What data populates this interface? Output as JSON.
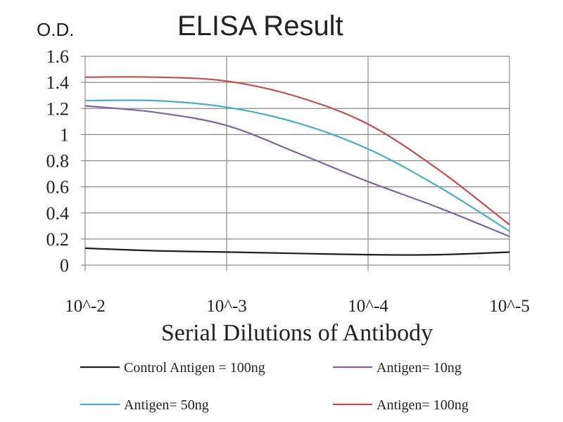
{
  "chart_data": {
    "type": "line",
    "title": "ELISA Result",
    "ylabel": "O.D.",
    "xlabel": "Serial Dilutions of Antibody",
    "x_categories": [
      "10^-2",
      "10^-3",
      "10^-4",
      "10^-5"
    ],
    "x_scale": "log (dilution factor, decreasing)",
    "ylim": [
      0,
      1.6
    ],
    "y_ticks": [
      "0",
      "0.2",
      "0.4",
      "0.6",
      "0.8",
      "1",
      "1.2",
      "1.4",
      "1.6"
    ],
    "grid": true,
    "legend_placement": "bottom",
    "series": [
      {
        "name": "Control Antigen = 100ng",
        "color": "#1f1f1f",
        "x": [
          0,
          0.5,
          1,
          1.5,
          2,
          2.5,
          3
        ],
        "y": [
          0.13,
          0.11,
          0.1,
          0.09,
          0.08,
          0.08,
          0.1
        ]
      },
      {
        "name": "Antigen= 10ng",
        "color": "#8064a2",
        "x": [
          0,
          0.5,
          1,
          1.5,
          2,
          2.5,
          3
        ],
        "y": [
          1.22,
          1.17,
          1.07,
          0.86,
          0.64,
          0.44,
          0.22
        ]
      },
      {
        "name": "Antigen= 50ng",
        "color": "#4bacc6",
        "x": [
          0,
          0.5,
          1,
          1.5,
          2,
          2.5,
          3
        ],
        "y": [
          1.26,
          1.26,
          1.21,
          1.09,
          0.89,
          0.6,
          0.26
        ]
      },
      {
        "name": "Antigen= 100ng",
        "color": "#c0504d",
        "x": [
          0,
          0.5,
          1,
          1.5,
          2,
          2.5,
          3
        ],
        "y": [
          1.44,
          1.44,
          1.41,
          1.29,
          1.08,
          0.73,
          0.31
        ]
      }
    ]
  }
}
